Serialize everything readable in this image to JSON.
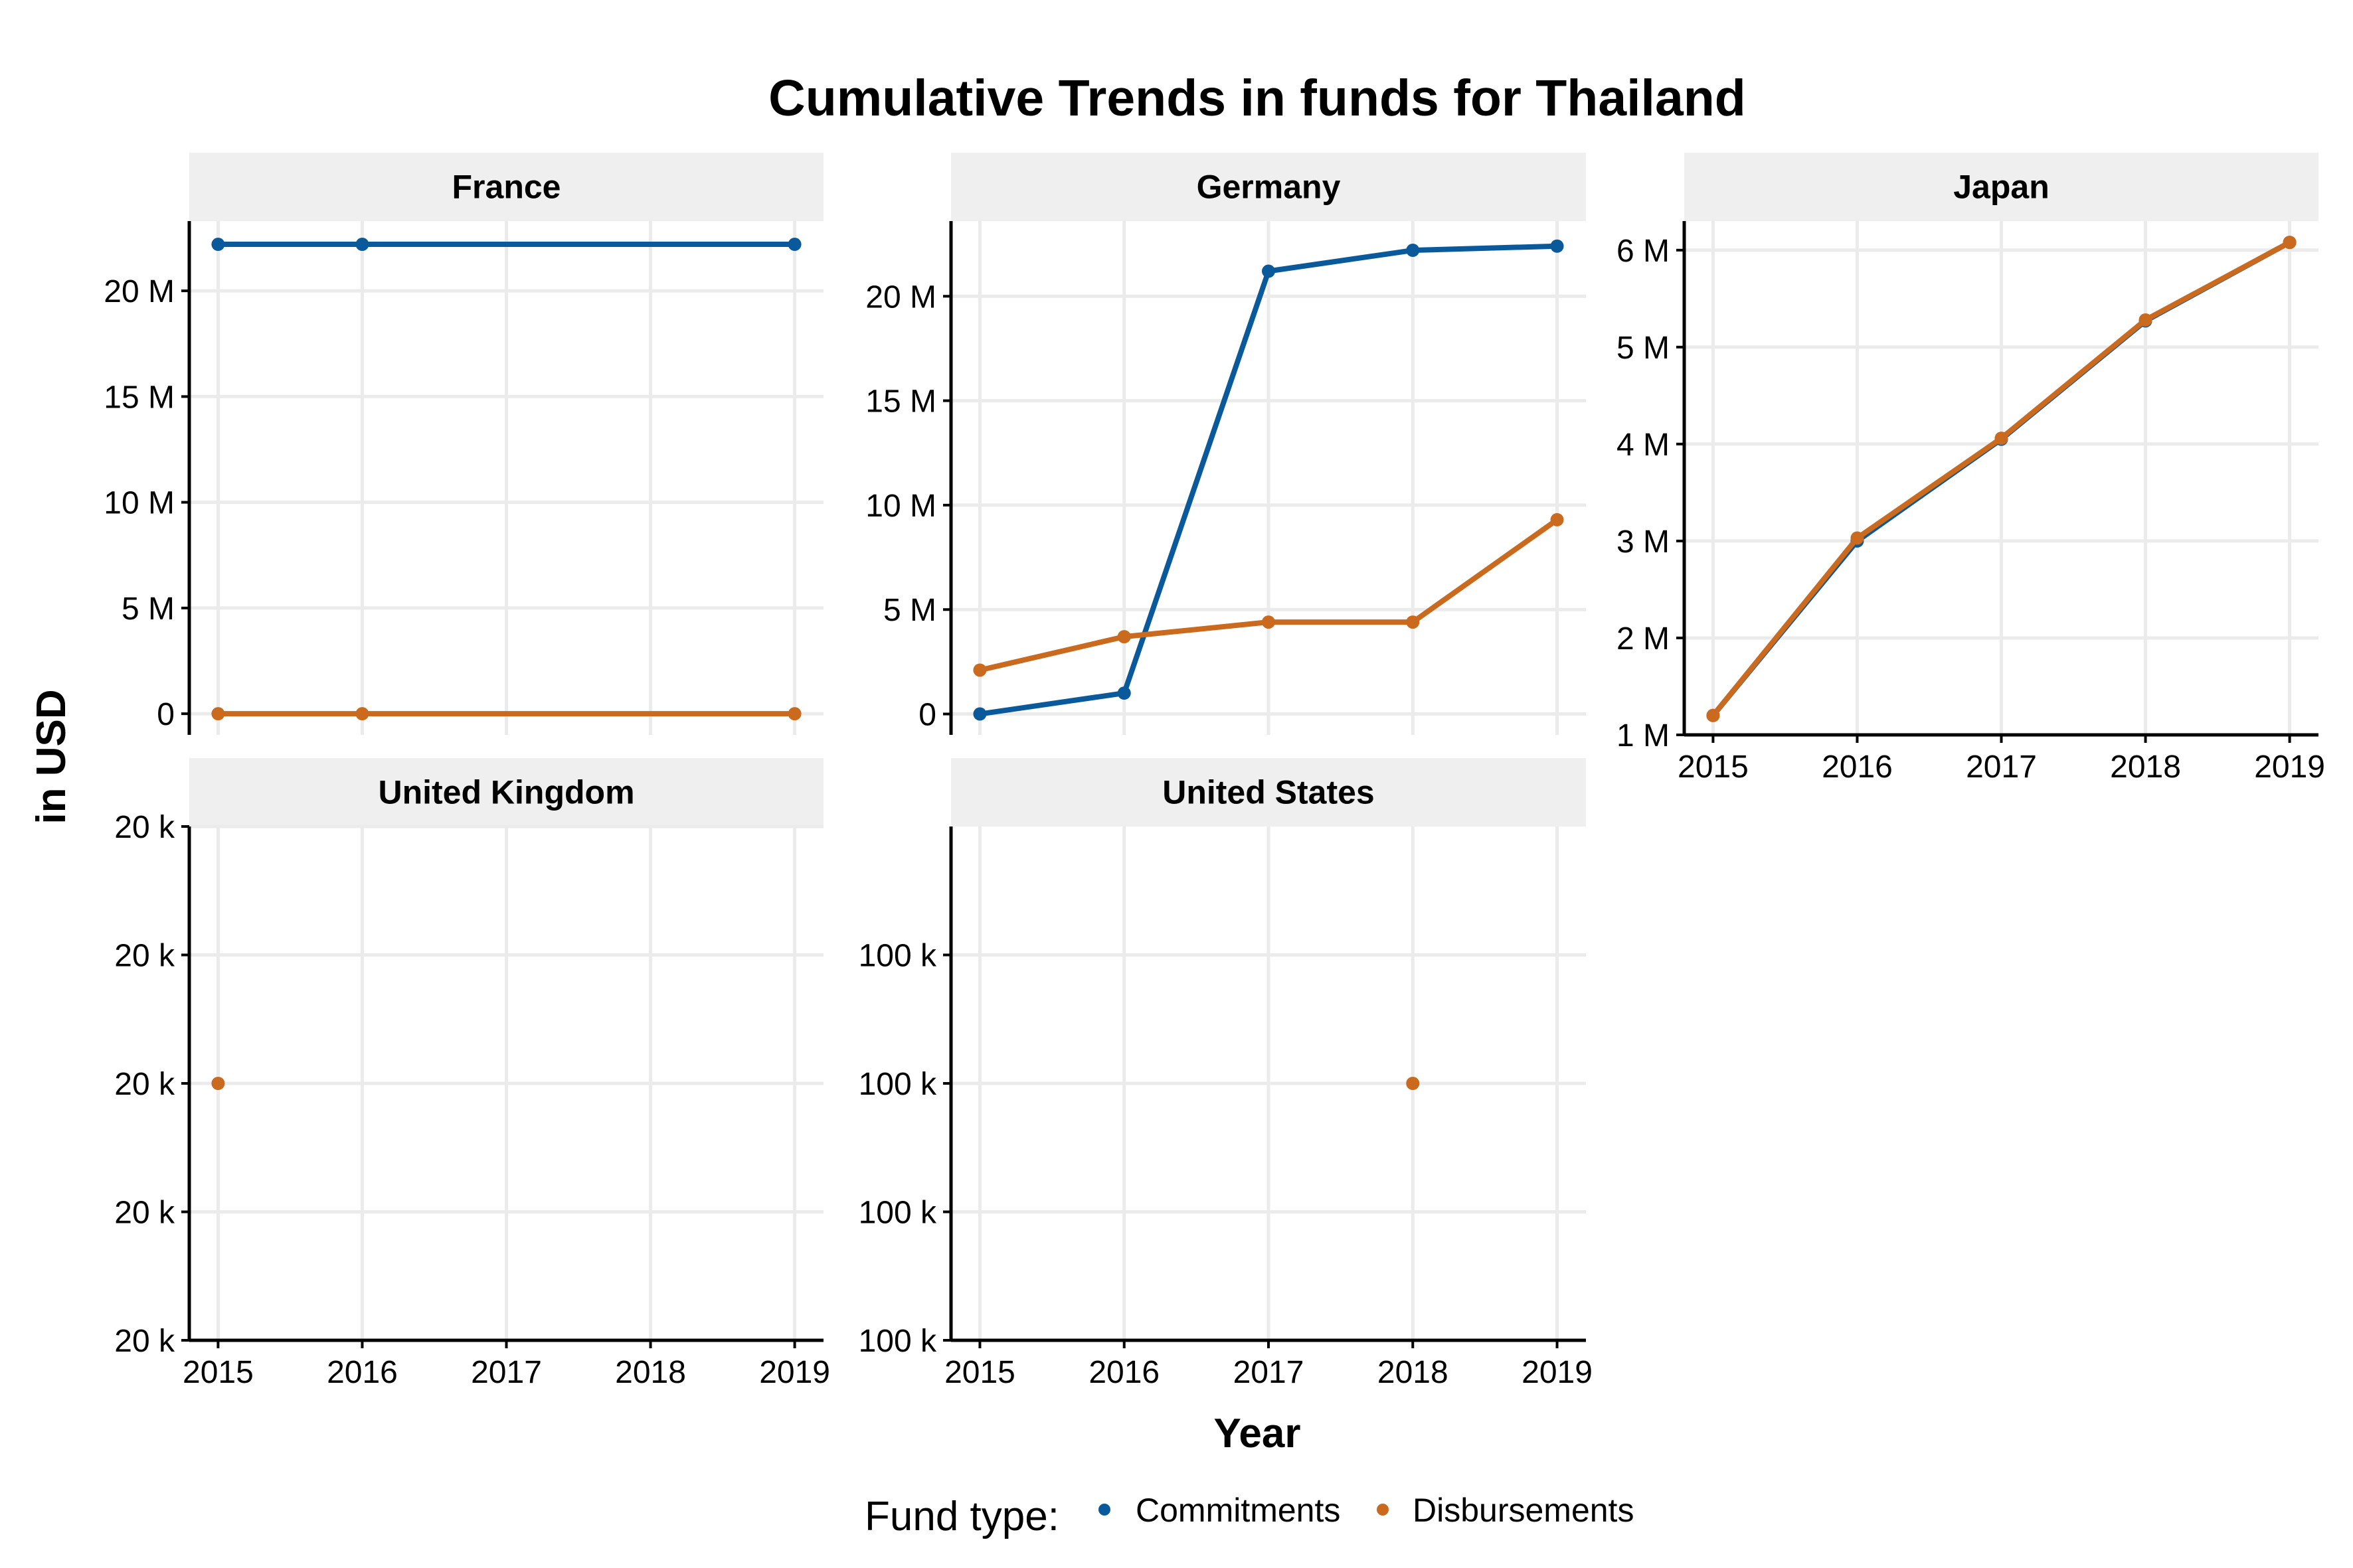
{
  "chart_data": {
    "type": "line",
    "title": "Cumulative Trends in funds for Thailand",
    "xlabel": "Year",
    "ylabel": "in USD",
    "x": [
      2015,
      2016,
      2017,
      2018,
      2019
    ],
    "grid": true,
    "legend": {
      "title": "Fund type:",
      "position": "bottom",
      "entries": [
        {
          "name": "Commitments",
          "color": "#0a5a9b"
        },
        {
          "name": "Disbursements",
          "color": "#c96a1e"
        }
      ]
    },
    "colors": {
      "Commitments": "#0a5a9b",
      "Disbursements": "#c96a1e"
    },
    "panels": [
      {
        "name": "France",
        "ylim": [
          -1000000,
          23300000
        ],
        "yticks": [
          0,
          5000000,
          10000000,
          15000000,
          20000000
        ],
        "ytick_labels": [
          "0",
          "5 M",
          "10 M",
          "15 M",
          "20 M"
        ],
        "show_xticks": false,
        "series": [
          {
            "name": "Commitments",
            "x": [
              2015,
              2016,
              2019
            ],
            "values": [
              22200000,
              22200000,
              22200000
            ]
          },
          {
            "name": "Disbursements",
            "x": [
              2015,
              2016,
              2019
            ],
            "values": [
              0,
              0,
              0
            ]
          }
        ]
      },
      {
        "name": "Germany",
        "ylim": [
          -1000000,
          23600000
        ],
        "yticks": [
          0,
          5000000,
          10000000,
          15000000,
          20000000
        ],
        "ytick_labels": [
          "0",
          "5 M",
          "10 M",
          "15 M",
          "20 M"
        ],
        "show_xticks": false,
        "series": [
          {
            "name": "Commitments",
            "x": [
              2015,
              2016,
              2017,
              2018,
              2019
            ],
            "values": [
              0,
              1000000,
              21200000,
              22200000,
              22400000
            ]
          },
          {
            "name": "Disbursements",
            "x": [
              2015,
              2016,
              2017,
              2018,
              2019
            ],
            "values": [
              2100000,
              3700000,
              4400000,
              4400000,
              9300000
            ]
          }
        ]
      },
      {
        "name": "Japan",
        "ylim": [
          1000000,
          6300000
        ],
        "yticks": [
          1000000,
          2000000,
          3000000,
          4000000,
          5000000,
          6000000
        ],
        "ytick_labels": [
          "1 M",
          "2 M",
          "3 M",
          "4 M",
          "5 M",
          "6 M"
        ],
        "show_xticks": true,
        "series": [
          {
            "name": "Commitments",
            "x": [
              2015,
              2016,
              2017,
              2018,
              2019
            ],
            "values": [
              1200000,
              3000000,
              4050000,
              5270000,
              6080000
            ]
          },
          {
            "name": "Disbursements",
            "x": [
              2015,
              2016,
              2017,
              2018,
              2019
            ],
            "values": [
              1200000,
              3030000,
              4060000,
              5280000,
              6080000
            ]
          }
        ]
      },
      {
        "name": "United Kingdom",
        "ylim": [
          19999.9,
          20000.1
        ],
        "yticks": [
          19999.9,
          19999.95,
          20000.0,
          20000.05,
          20000.1
        ],
        "ytick_labels": [
          "20 k",
          "20 k",
          "20 k",
          "20 k",
          "20 k"
        ],
        "show_xticks": true,
        "series": [
          {
            "name": "Disbursements",
            "x": [
              2015
            ],
            "values": [
              20000
            ]
          }
        ]
      },
      {
        "name": "United States",
        "ylim": [
          99999.9,
          100000.1
        ],
        "yticks": [
          99999.9,
          99999.95,
          100000.0,
          100000.05
        ],
        "ytick_labels": [
          "100 k",
          "100 k",
          "100 k",
          "100 k"
        ],
        "show_xticks": true,
        "series": [
          {
            "name": "Disbursements",
            "x": [
              2018
            ],
            "values": [
              100000
            ]
          }
        ]
      }
    ]
  }
}
